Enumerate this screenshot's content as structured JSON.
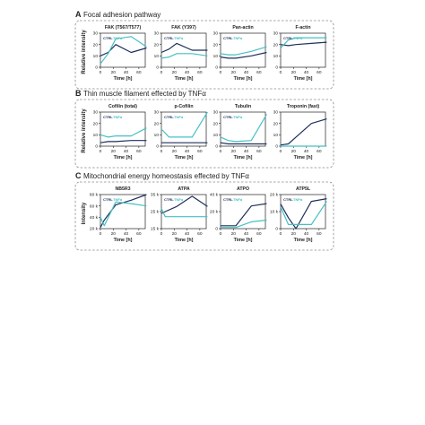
{
  "colors": {
    "ctrl": "#1f2f5c",
    "tnf": "#45c0c4",
    "border": "#8a8a8a",
    "axis": "#222222"
  },
  "sections": [
    {
      "letter": "A",
      "title": "Focal adhesion pathway",
      "ylabel": "Relative intensity"
    },
    {
      "letter": "B",
      "title": "Thin muscle filament effected by TNFα",
      "ylabel": "Relative intensity"
    },
    {
      "letter": "C",
      "title": "Mitochondrial energy homeostasis effected by TNFα",
      "ylabel": "Intensity"
    }
  ],
  "legend": {
    "ctrl": "CTRL",
    "tnf": "TNFα"
  },
  "chart_data": [
    {
      "type": "line",
      "section": 0,
      "title": "FAK (T567/T577)",
      "xlabel": "Time [h]",
      "xticks": [
        "0",
        "20",
        "40",
        "60"
      ],
      "xlim": [
        0,
        70
      ],
      "ylim": [
        0,
        30
      ],
      "yticks": [
        "0",
        "10",
        "20",
        "30"
      ],
      "legend": "inside",
      "series": [
        {
          "name": "CTRL",
          "x": [
            0,
            12,
            24,
            48,
            72
          ],
          "y": [
            10,
            13,
            20,
            13,
            17
          ]
        },
        {
          "name": "TNFα",
          "x": [
            0,
            12,
            24,
            48,
            72
          ],
          "y": [
            3,
            12,
            25,
            27,
            18
          ]
        }
      ]
    },
    {
      "type": "line",
      "section": 0,
      "title": "FAK (Y397)",
      "xlabel": "Time [h]",
      "xticks": [
        "0",
        "20",
        "40",
        "60"
      ],
      "xlim": [
        0,
        70
      ],
      "ylim": [
        0,
        30
      ],
      "yticks": [
        "0",
        "10",
        "20",
        "30"
      ],
      "legend": "inside",
      "series": [
        {
          "name": "CTRL",
          "x": [
            0,
            12,
            24,
            48,
            72
          ],
          "y": [
            13,
            16,
            21,
            15,
            15
          ]
        },
        {
          "name": "TNFα",
          "x": [
            0,
            12,
            24,
            48,
            72
          ],
          "y": [
            8,
            9,
            12,
            12,
            10
          ]
        }
      ]
    },
    {
      "type": "line",
      "section": 0,
      "title": "Pan-actin",
      "xlabel": "Time [h]",
      "xticks": [
        "0",
        "20",
        "40",
        "60"
      ],
      "xlim": [
        0,
        70
      ],
      "ylim": [
        0,
        30
      ],
      "yticks": [
        "0",
        "10",
        "20",
        "30"
      ],
      "legend": "inside",
      "series": [
        {
          "name": "CTRL",
          "x": [
            0,
            12,
            24,
            48,
            72
          ],
          "y": [
            9,
            8,
            8,
            10,
            13
          ]
        },
        {
          "name": "TNFα",
          "x": [
            0,
            12,
            24,
            48,
            72
          ],
          "y": [
            12,
            11,
            11,
            14,
            18
          ]
        }
      ]
    },
    {
      "type": "line",
      "section": 0,
      "title": "F-actin",
      "xlabel": "Time [h]",
      "xticks": [
        "0",
        "20",
        "40",
        "60"
      ],
      "xlim": [
        0,
        70
      ],
      "ylim": [
        0,
        30
      ],
      "yticks": [
        "0",
        "10",
        "20",
        "30"
      ],
      "legend": "inside",
      "series": [
        {
          "name": "CTRL",
          "x": [
            0,
            12,
            24,
            48,
            72
          ],
          "y": [
            20,
            19,
            20,
            21,
            22
          ]
        },
        {
          "name": "TNFα",
          "x": [
            0,
            12,
            24,
            48,
            72
          ],
          "y": [
            17,
            24,
            26,
            26,
            26
          ]
        }
      ]
    },
    {
      "type": "line",
      "section": 1,
      "title": "Cofilin (total)",
      "xlabel": "Time [h]",
      "xticks": [
        "0",
        "20",
        "40",
        "60"
      ],
      "xlim": [
        0,
        70
      ],
      "ylim": [
        0,
        30
      ],
      "yticks": [
        "0",
        "10",
        "20",
        "30"
      ],
      "legend": "inside",
      "series": [
        {
          "name": "CTRL",
          "x": [
            0,
            12,
            24,
            48,
            72
          ],
          "y": [
            3,
            4,
            4,
            5,
            5
          ]
        },
        {
          "name": "TNFα",
          "x": [
            0,
            12,
            24,
            48,
            72
          ],
          "y": [
            10,
            8,
            9,
            9,
            16
          ]
        }
      ]
    },
    {
      "type": "line",
      "section": 1,
      "title": "p-Cofilin",
      "xlabel": "Time [h]",
      "xticks": [
        "0",
        "20",
        "40",
        "60"
      ],
      "xlim": [
        0,
        70
      ],
      "ylim": [
        0,
        30
      ],
      "yticks": [
        "0",
        "10",
        "20",
        "30"
      ],
      "legend": "inside",
      "series": [
        {
          "name": "CTRL",
          "x": [
            0,
            12,
            24,
            48,
            72
          ],
          "y": [
            3,
            3,
            3,
            3,
            3
          ]
        },
        {
          "name": "TNFα",
          "x": [
            0,
            12,
            24,
            48,
            72
          ],
          "y": [
            15,
            8,
            8,
            8,
            30
          ]
        }
      ]
    },
    {
      "type": "line",
      "section": 1,
      "title": "Tubulin",
      "xlabel": "Time [h]",
      "xticks": [
        "0",
        "20",
        "40",
        "60"
      ],
      "xlim": [
        0,
        70
      ],
      "ylim": [
        0,
        30
      ],
      "yticks": [
        "0",
        "10",
        "20",
        "30"
      ],
      "legend": "inside",
      "series": [
        {
          "name": "CTRL",
          "x": [
            0,
            12,
            24,
            48,
            72
          ],
          "y": [
            3,
            2,
            2,
            2,
            2
          ]
        },
        {
          "name": "TNFα",
          "x": [
            0,
            12,
            24,
            48,
            72
          ],
          "y": [
            8,
            5,
            4,
            5,
            28
          ]
        }
      ]
    },
    {
      "type": "line",
      "section": 1,
      "title": "Troponin (fast)",
      "xlabel": "Time [h]",
      "xticks": [
        "0",
        "20",
        "40",
        "60"
      ],
      "xlim": [
        0,
        70
      ],
      "ylim": [
        0,
        30
      ],
      "yticks": [
        "0",
        "10",
        "20",
        "30"
      ],
      "legend": "none",
      "series": [
        {
          "name": "CTRL",
          "x": [
            0,
            12,
            24,
            48,
            72
          ],
          "y": [
            1,
            2,
            8,
            20,
            24
          ]
        },
        {
          "name": "TNFα",
          "x": [
            0,
            12,
            24,
            48,
            72
          ],
          "y": [
            0,
            0,
            0,
            0,
            0
          ]
        }
      ]
    },
    {
      "type": "line",
      "section": 2,
      "title": "NB5R3",
      "xlabel": "Time [h]",
      "xticks": [
        "0",
        "20",
        "40",
        "60"
      ],
      "xlim": [
        0,
        70
      ],
      "ylim": [
        20000,
        80000
      ],
      "yticks": [
        "20 k",
        "40 k",
        "60 k",
        "80 k"
      ],
      "legend": "inside",
      "series": [
        {
          "name": "CTRL",
          "x": [
            0,
            6,
            24,
            48,
            72
          ],
          "y": [
            22000,
            35000,
            62000,
            70000,
            80000
          ]
        },
        {
          "name": "TNFα",
          "x": [
            0,
            6,
            24,
            48,
            72
          ],
          "y": [
            40000,
            25000,
            67000,
            64000,
            60000
          ]
        }
      ]
    },
    {
      "type": "line",
      "section": 2,
      "title": "ATPA",
      "xlabel": "Time [h]",
      "xticks": [
        "0",
        "20",
        "40",
        "60"
      ],
      "xlim": [
        0,
        70
      ],
      "ylim": [
        15000,
        35000
      ],
      "yticks": [
        "15 k",
        "25 k",
        "35 k"
      ],
      "legend": "inside",
      "series": [
        {
          "name": "CTRL",
          "x": [
            0,
            6,
            24,
            48,
            72
          ],
          "y": [
            24000,
            25000,
            28000,
            34000,
            28000
          ]
        },
        {
          "name": "TNFα",
          "x": [
            0,
            6,
            24,
            48,
            72
          ],
          "y": [
            27000,
            22000,
            22000,
            22000,
            22000
          ]
        }
      ]
    },
    {
      "type": "line",
      "section": 2,
      "title": "ATPO",
      "xlabel": "Time [h]",
      "xticks": [
        "0",
        "20",
        "40",
        "60"
      ],
      "xlim": [
        0,
        70
      ],
      "ylim": [
        0,
        60000
      ],
      "yticks": [
        "0",
        "20 k",
        "40 k"
      ],
      "legend": "inside",
      "series": [
        {
          "name": "CTRL",
          "x": [
            0,
            12,
            24,
            48,
            72
          ],
          "y": [
            5000,
            5000,
            5000,
            40000,
            44000
          ]
        },
        {
          "name": "TNFα",
          "x": [
            0,
            12,
            24,
            48,
            72
          ],
          "y": [
            2000,
            2000,
            2000,
            12000,
            15000
          ]
        }
      ]
    },
    {
      "type": "line",
      "section": 2,
      "title": "ATP5L",
      "xlabel": "Time [h]",
      "xticks": [
        "0",
        "20",
        "40",
        "60"
      ],
      "xlim": [
        0,
        70
      ],
      "ylim": [
        0,
        25000
      ],
      "yticks": [
        "0",
        "10 k",
        "20 k"
      ],
      "legend": "inside",
      "series": [
        {
          "name": "CTRL",
          "x": [
            0,
            12,
            24,
            48,
            72
          ],
          "y": [
            18000,
            8000,
            0,
            20000,
            22000
          ]
        },
        {
          "name": "TNFα",
          "x": [
            0,
            12,
            24,
            48,
            72
          ],
          "y": [
            16000,
            3000,
            3000,
            3000,
            20000
          ]
        }
      ]
    }
  ]
}
